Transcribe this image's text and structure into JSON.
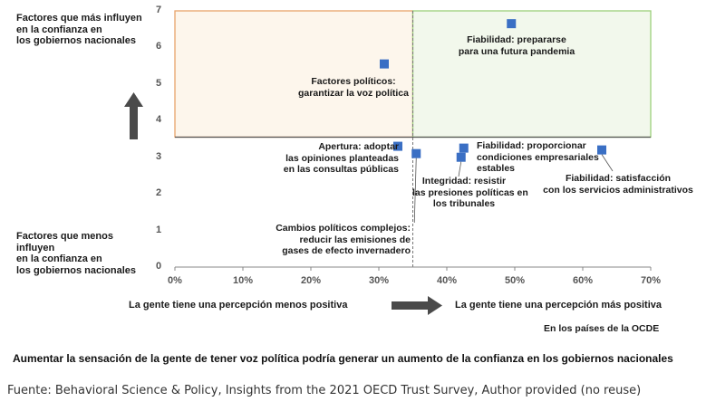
{
  "chart_data": {
    "type": "scatter",
    "xlim": [
      0,
      70
    ],
    "ylim": [
      0,
      7
    ],
    "x_unit": "%",
    "x_ticks": [
      "0%",
      "10%",
      "20%",
      "30%",
      "40%",
      "50%",
      "60%",
      "70%"
    ],
    "y_ticks": [
      "0",
      "1",
      "2",
      "3",
      "4",
      "5",
      "6",
      "7"
    ],
    "grid": false,
    "points": [
      {
        "x": 49.5,
        "y": 6.65,
        "label": "Fiabilidad: prepararse\npara una futura pandemia"
      },
      {
        "x": 30.8,
        "y": 5.55,
        "label": "Factores políticos:\ngarantizar la voz política"
      },
      {
        "x": 32.8,
        "y": 3.3,
        "label": "Apertura: adoptar\nlas opiniones planteadas\nen las consultas públicas"
      },
      {
        "x": 35.5,
        "y": 3.1,
        "label": "Cambios políticos complejos:\nreducir las emisiones de\ngases de efecto invernadero"
      },
      {
        "x": 42.1,
        "y": 3.0,
        "label": "Integridad: resistir\nlas presiones políticas en\nlos tribunales"
      },
      {
        "x": 42.5,
        "y": 3.25,
        "label": "Fiabilidad: proporcionar\ncondiciones empresariales\nestables"
      },
      {
        "x": 62.8,
        "y": 3.2,
        "label": "Fiabilidad: satisfacción\ncon los servicios administrativos"
      }
    ],
    "threshold_x": 35,
    "threshold_y": 3.55,
    "quadrant_colors": {
      "top_left": "#e8a36a",
      "top_right": "#9bd07a",
      "top_left_fill": "#fdf6ec",
      "top_right_fill": "#f2f8ec"
    },
    "marker_color": "#3a6fc4"
  },
  "labels": {
    "top_left": "Factores que más influyen\nen la confianza en\nlos gobiernos nacionales",
    "bottom_left": "Factores que menos\ninfluyen\nen la confianza en\nlos gobiernos nacionales",
    "x_less": "La gente tiene una percepción menos positiva",
    "x_more": "La gente tiene una percepción más positiva",
    "oecd": "En los países de la OCDE",
    "caption": "Aumentar la sensación de la gente de tener voz política podría generar un aumento de la confianza en los gobiernos nacionales",
    "source": "Fuente: Behavioral Science & Policy, Insights from the 2021 OECD Trust Survey, Author provided (no reuse)"
  }
}
